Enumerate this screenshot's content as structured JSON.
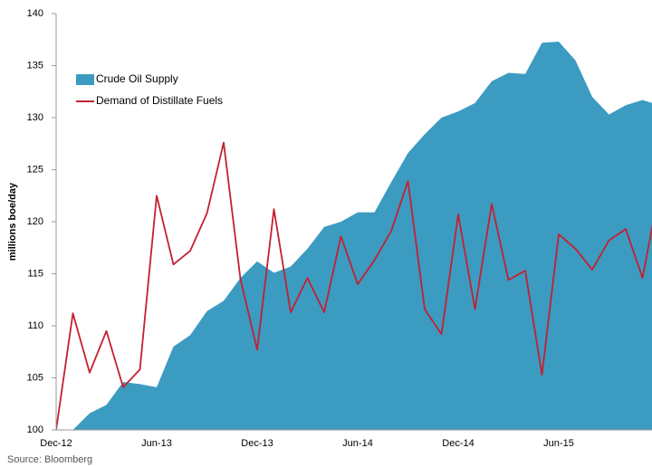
{
  "chart_data": {
    "type": "area_line",
    "y_label": "millions boe/day",
    "source": "Source: Bloomberg",
    "categories": [
      "Dec-12",
      null,
      null,
      null,
      null,
      null,
      "Jun-13",
      null,
      null,
      null,
      null,
      null,
      "Dec-13",
      null,
      null,
      null,
      null,
      null,
      "Jun-14",
      null,
      null,
      null,
      null,
      null,
      "Dec-14",
      null,
      null,
      null,
      null,
      null,
      "Jun-15",
      null,
      null,
      null,
      null,
      null,
      null
    ],
    "series": [
      {
        "name": "Crude Oil Supply",
        "kind": "area",
        "color": "#3c9bc1",
        "values": [
          100,
          100,
          101.6,
          102.4,
          104.6,
          104.4,
          104.1,
          108,
          109.1,
          111.4,
          112.4,
          114.6,
          116.2,
          115.1,
          115.7,
          117.4,
          119.5,
          120,
          120.9,
          120.9,
          123.8,
          126.6,
          128.4,
          130,
          130.6,
          131.4,
          133.5,
          134.3,
          134.2,
          137.2,
          137.3,
          135.5,
          132,
          130.3,
          131.2,
          131.7,
          131.2
        ]
      },
      {
        "name": "Demand of Distillate Fuels",
        "kind": "line",
        "color": "#c4202f",
        "values": [
          100,
          111.2,
          105.5,
          109.5,
          104.1,
          105.8,
          122.5,
          115.9,
          117.2,
          120.8,
          127.6,
          114.5,
          107.7,
          121.2,
          111.3,
          114.6,
          111.3,
          118.6,
          114,
          116.3,
          119.1,
          123.9,
          111.6,
          109.2,
          120.7,
          111.6,
          121.7,
          114.4,
          115.3,
          105.3,
          118.8,
          117.4,
          115.4,
          118.2,
          119.3,
          114.6,
          123
        ]
      }
    ],
    "ylim": [
      100,
      140
    ],
    "yticks": [
      100,
      105,
      110,
      115,
      120,
      125,
      130,
      135,
      140
    ]
  }
}
